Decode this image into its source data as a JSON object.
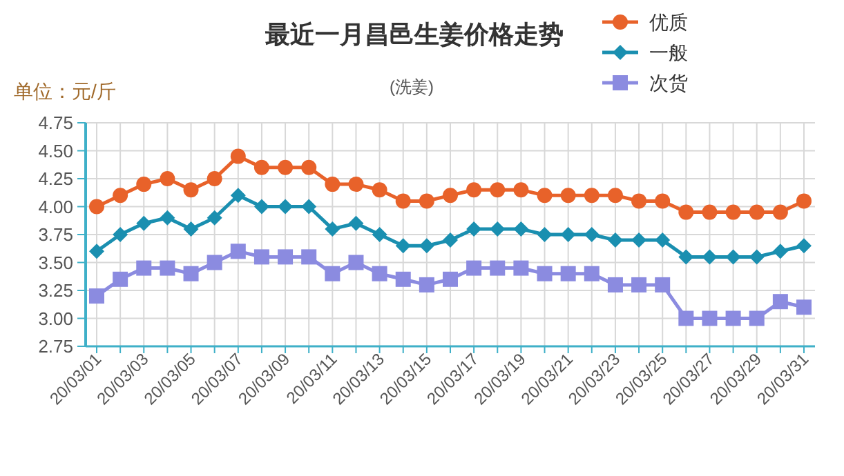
{
  "chart_data": {
    "type": "line",
    "title": "最近一月昌邑生姜价格走势",
    "subtitle": "(洗姜)",
    "ylabel": "单位：元/斤",
    "categories": [
      "20/03/01",
      null,
      "20/03/03",
      null,
      "20/03/05",
      null,
      "20/03/07",
      null,
      "20/03/09",
      null,
      "20/03/11",
      null,
      "20/03/13",
      null,
      "20/03/15",
      null,
      "20/03/17",
      null,
      "20/03/19",
      null,
      "20/03/21",
      null,
      "20/03/23",
      null,
      "20/03/25",
      null,
      "20/03/27",
      null,
      "20/03/29",
      null,
      "20/03/31"
    ],
    "series": [
      {
        "name": "优质",
        "color": "#e8622a",
        "marker": "circle",
        "values": [
          4.0,
          4.1,
          4.2,
          4.25,
          4.15,
          4.25,
          4.45,
          4.35,
          4.35,
          4.35,
          4.2,
          4.2,
          4.15,
          4.05,
          4.05,
          4.1,
          4.15,
          4.15,
          4.15,
          4.1,
          4.1,
          4.1,
          4.1,
          4.05,
          4.05,
          3.95,
          3.95,
          3.95,
          3.95,
          3.95,
          4.05
        ]
      },
      {
        "name": "一般",
        "color": "#1a8fb0",
        "marker": "diamond",
        "values": [
          3.6,
          3.75,
          3.85,
          3.9,
          3.8,
          3.9,
          4.1,
          4.0,
          4.0,
          4.0,
          3.8,
          3.85,
          3.75,
          3.65,
          3.65,
          3.7,
          3.8,
          3.8,
          3.8,
          3.75,
          3.75,
          3.75,
          3.7,
          3.7,
          3.7,
          3.55,
          3.55,
          3.55,
          3.55,
          3.6,
          3.65
        ]
      },
      {
        "name": "次货",
        "color": "#8b8be0",
        "marker": "square",
        "values": [
          3.2,
          3.35,
          3.45,
          3.45,
          3.4,
          3.5,
          3.6,
          3.55,
          3.55,
          3.55,
          3.4,
          3.5,
          3.4,
          3.35,
          3.3,
          3.35,
          3.45,
          3.45,
          3.45,
          3.4,
          3.4,
          3.4,
          3.3,
          3.3,
          3.3,
          3.0,
          3.0,
          3.0,
          3.0,
          3.15,
          3.1
        ]
      }
    ],
    "ylim": [
      2.75,
      4.75
    ],
    "yticks": [
      {
        "value": 2.75,
        "label": "2.75"
      },
      {
        "value": 3.0,
        "label": "3.00"
      },
      {
        "value": 3.25,
        "label": "3.25"
      },
      {
        "value": 3.5,
        "label": "3.50"
      },
      {
        "value": 3.75,
        "label": "3.75"
      },
      {
        "value": 4.0,
        "label": "4.00"
      },
      {
        "value": 4.25,
        "label": "4.25"
      },
      {
        "value": 4.5,
        "label": "4.50"
      },
      {
        "value": 4.75,
        "label": "4.75"
      }
    ],
    "grid": true,
    "legend": "top right",
    "line_style": "solid"
  }
}
